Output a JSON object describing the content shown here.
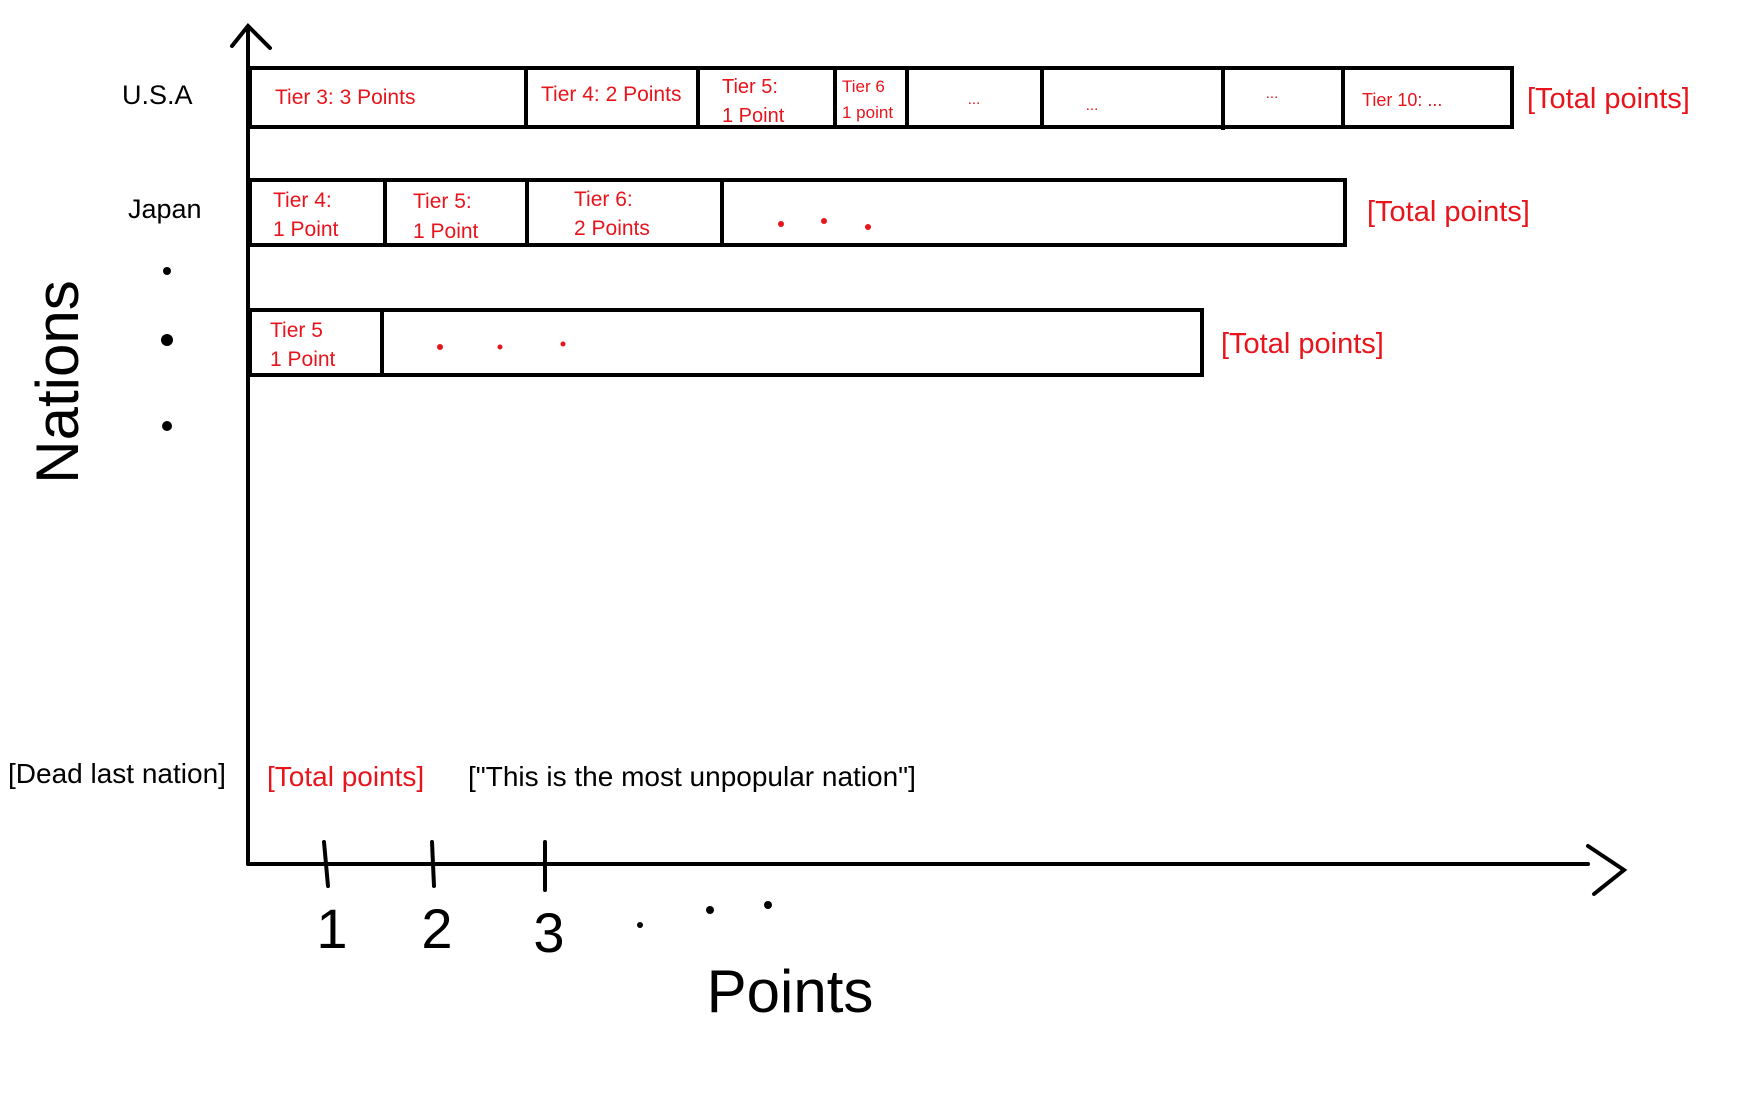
{
  "colors": {
    "accent": "#e8141c",
    "ink": "#000000",
    "background": "#ffffff"
  },
  "axes": {
    "y_label": "Nations",
    "x_label": "Points",
    "x_ticks": [
      "1",
      "2",
      "3"
    ]
  },
  "rows": [
    {
      "nation": "U.S.A",
      "total": "[Total points]",
      "segments": [
        {
          "lines": [
            "Tier 3: 3 Points"
          ]
        },
        {
          "lines": [
            "Tier 4: 2 Points"
          ]
        },
        {
          "lines": [
            "Tier 5:",
            "1 Point"
          ]
        },
        {
          "lines": [
            "Tier 6",
            "1 point"
          ]
        },
        {
          "lines": [
            "..."
          ]
        },
        {
          "lines": [
            "..."
          ]
        },
        {
          "lines": [
            "..."
          ]
        },
        {
          "lines": [
            "Tier 10: ..."
          ]
        }
      ]
    },
    {
      "nation": "Japan",
      "total": "[Total points]",
      "segments": [
        {
          "lines": [
            "Tier 4:",
            "1 Point"
          ]
        },
        {
          "lines": [
            "Tier 5:",
            "1 Point"
          ]
        },
        {
          "lines": [
            "Tier 6:",
            "2 Points"
          ]
        }
      ]
    },
    {
      "nation": "",
      "total": "[Total points]",
      "segments": [
        {
          "lines": [
            "Tier 5",
            "1 Point"
          ]
        }
      ]
    }
  ],
  "last_row": {
    "nation": "[Dead last nation]",
    "total": "[Total points]",
    "note": "[\"This is the most unpopular nation\"]"
  }
}
